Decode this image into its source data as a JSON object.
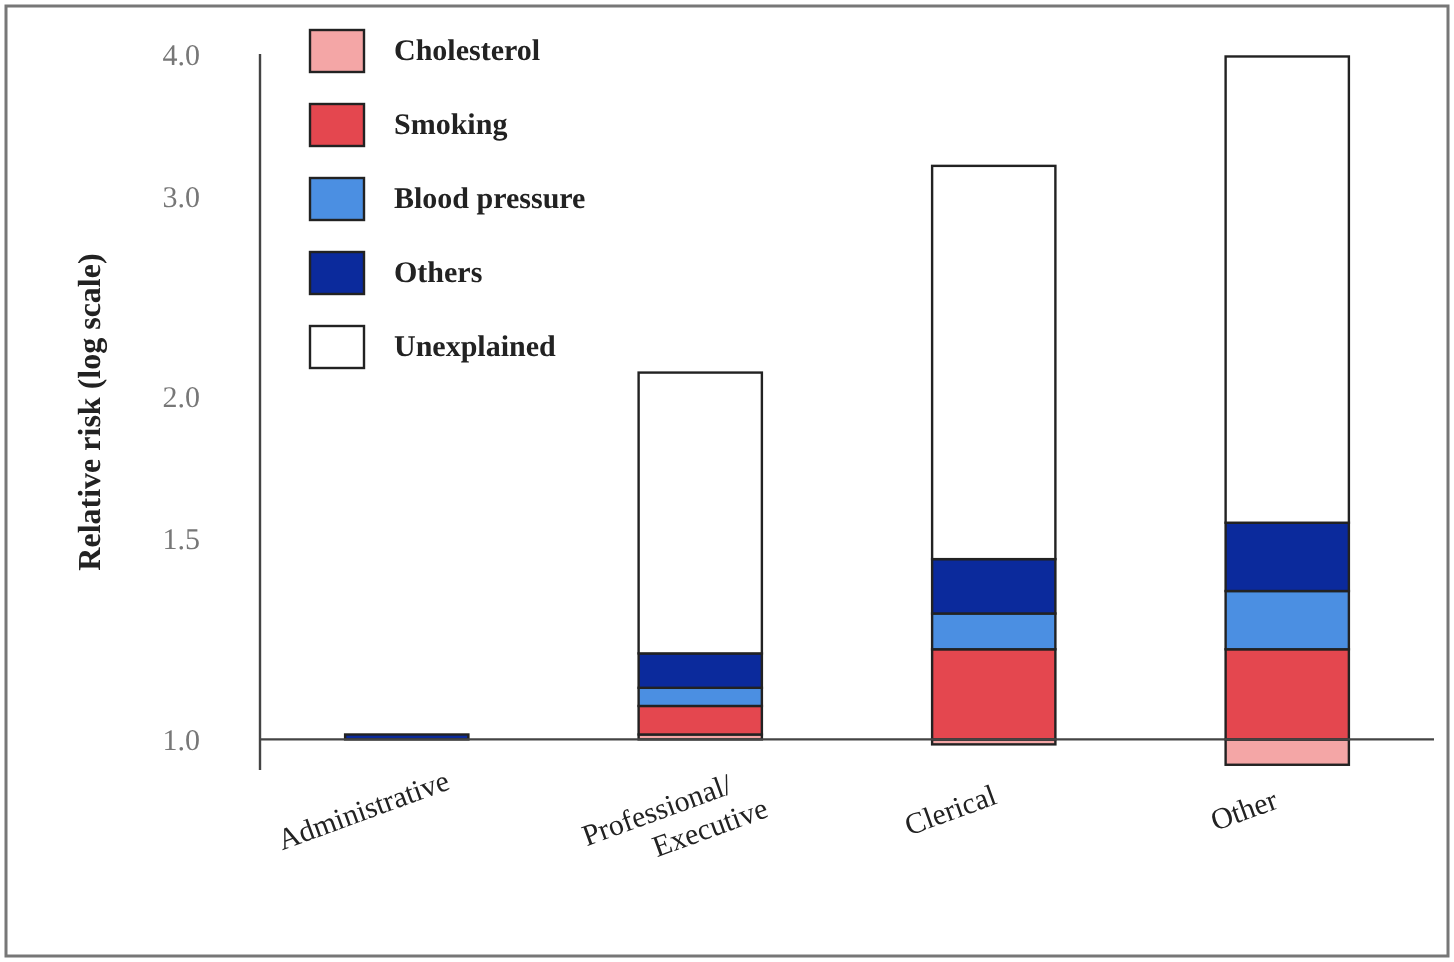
{
  "chart_data": {
    "type": "bar",
    "log": true,
    "ylabel": "Relative risk (log scale)",
    "categories": [
      "Administrative",
      "Professional/Executive",
      "Clerical",
      "Other"
    ],
    "series": [
      {
        "name": "Cholesterol",
        "color": "#f4a6a6",
        "base": [
          null,
          1,
          1,
          1
        ],
        "values": [
          null,
          0.01,
          -0.01,
          -0.05
        ]
      },
      {
        "name": "Smoking",
        "color": "#e4474f",
        "base": [
          null,
          1.01,
          1,
          1
        ],
        "values": [
          null,
          0.06,
          0.2,
          0.2
        ]
      },
      {
        "name": "Blood pressure",
        "color": "#4b8fe2",
        "base": [
          null,
          1.07,
          1.2,
          1.2
        ],
        "values": [
          null,
          0.04,
          0.09,
          0.15
        ]
      },
      {
        "name": "Others",
        "color": "#0b2a9c",
        "base": [
          1,
          1.11,
          1.29,
          1.35
        ],
        "values": [
          0.01,
          0.08,
          0.15,
          0.2
        ]
      },
      {
        "name": "Unexplained",
        "color": "#ffffff",
        "base": [
          null,
          1.19,
          1.44,
          1.55
        ],
        "values": [
          null,
          0.91,
          1.75,
          2.43
        ]
      }
    ],
    "ylim": [
      0.94,
      4.0
    ],
    "yticks": [
      {
        "value": 1,
        "label": "1.0"
      },
      1.5,
      {
        "value": 2,
        "label": "2.0"
      },
      {
        "value": 3,
        "label": "3.0"
      },
      {
        "value": 4,
        "label": "4.0"
      }
    ],
    "grid": false,
    "legend": "top left"
  }
}
